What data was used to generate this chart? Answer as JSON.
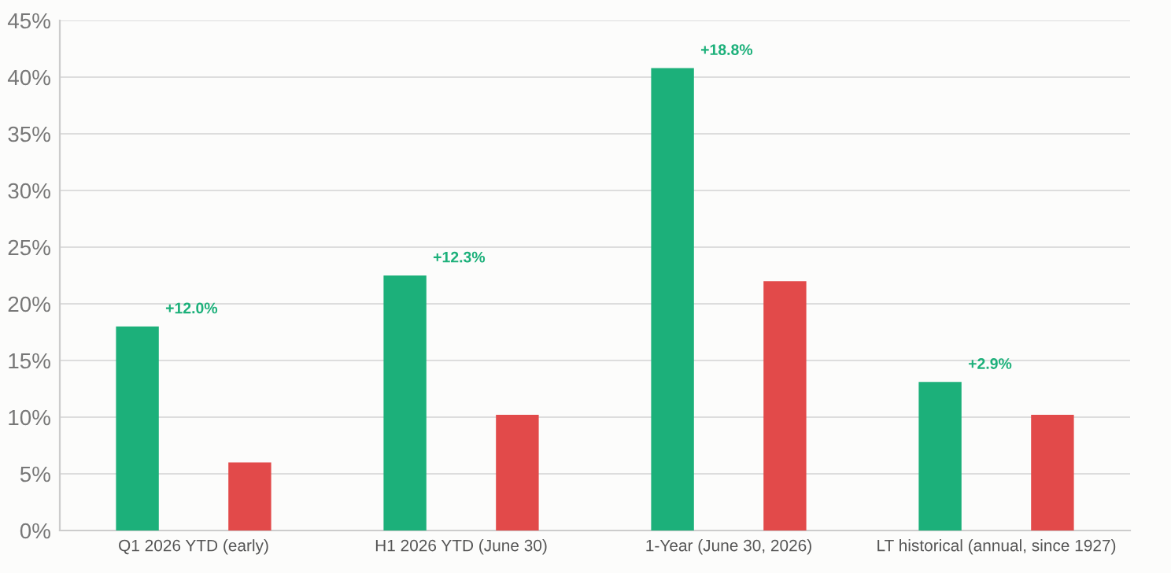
{
  "chart_data": {
    "type": "bar",
    "categories": [
      "Q1 2026 YTD (early)",
      "H1 2026 YTD (June 30)",
      "1-Year (June 30, 2026)",
      "LT historical (annual, since 1927)"
    ],
    "series": [
      {
        "color": "#1cb07a",
        "values": [
          18.0,
          22.5,
          40.8,
          13.1
        ]
      },
      {
        "color": "#e24a4a",
        "values": [
          6.0,
          10.2,
          22.0,
          10.2
        ]
      }
    ],
    "ylim": [
      0,
      45
    ],
    "yticks": [
      {
        "value": 0,
        "label": "0%"
      },
      {
        "value": 5,
        "label": "5%"
      },
      {
        "value": 10,
        "label": "10%"
      },
      {
        "value": 15,
        "label": "15%"
      },
      {
        "value": 20,
        "label": "20%"
      },
      {
        "value": 25,
        "label": "25%"
      },
      {
        "value": 30,
        "label": "30%"
      },
      {
        "value": 35,
        "label": "35%"
      },
      {
        "value": 40,
        "label": "40%"
      },
      {
        "value": 45,
        "label": "45%"
      }
    ],
    "grid": "y",
    "legend": false,
    "annotations": [
      "+12.0%",
      "+12.3%",
      "+18.8%",
      "+2.9%"
    ]
  }
}
